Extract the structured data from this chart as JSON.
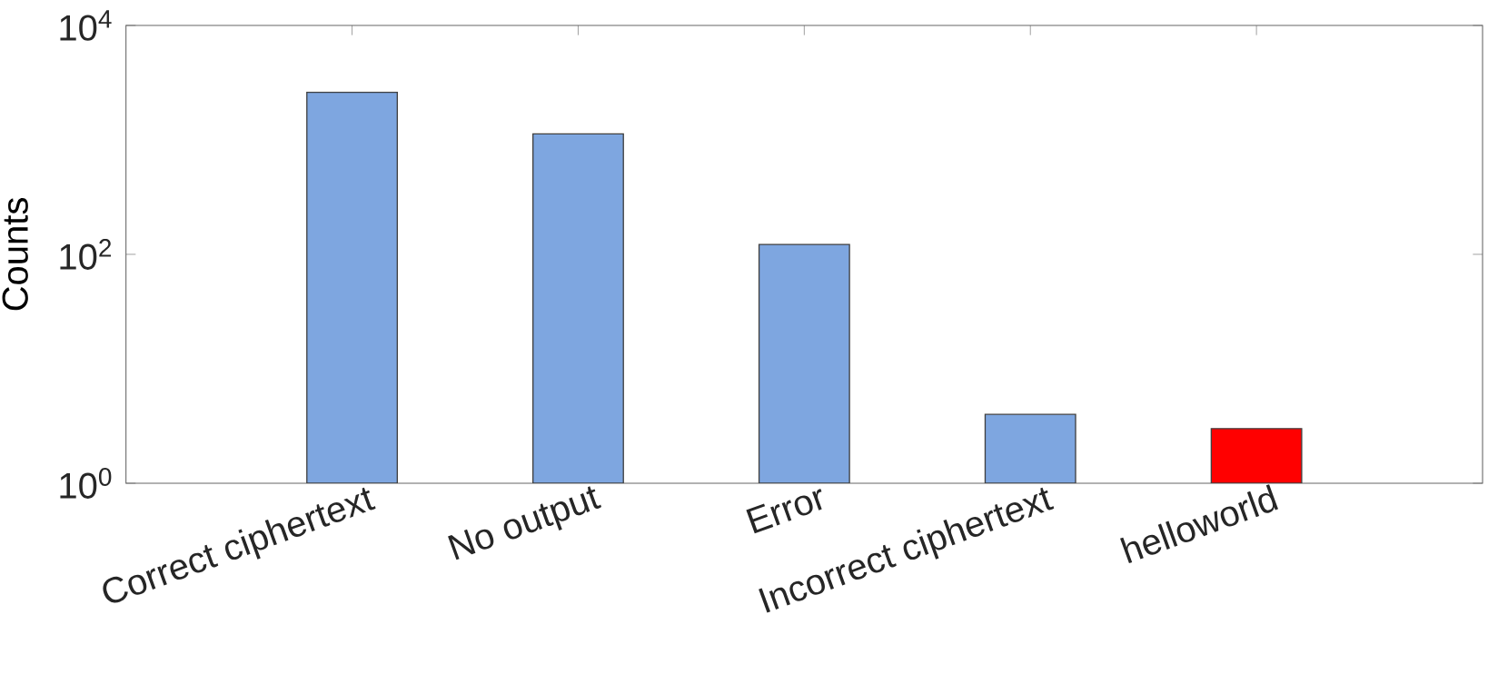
{
  "chart_data": {
    "type": "bar",
    "ylabel": "Counts",
    "categories": [
      "Correct ciphertext",
      "No output",
      "Error",
      "Incorrect ciphertext",
      "helloworld"
    ],
    "values": [
      2600,
      1130,
      122,
      4,
      3
    ],
    "colors": [
      "#7ea6e0",
      "#7ea6e0",
      "#7ea6e0",
      "#7ea6e0",
      "#ff0000"
    ],
    "log": "y",
    "ylim": [
      1,
      10000
    ],
    "yticks": [
      {
        "value": 1,
        "label": "10$^{0}$"
      },
      {
        "value": 100,
        "label": "10$^{2}$"
      },
      {
        "value": 10000,
        "label": "10$^{4}$"
      }
    ],
    "grid": false
  }
}
